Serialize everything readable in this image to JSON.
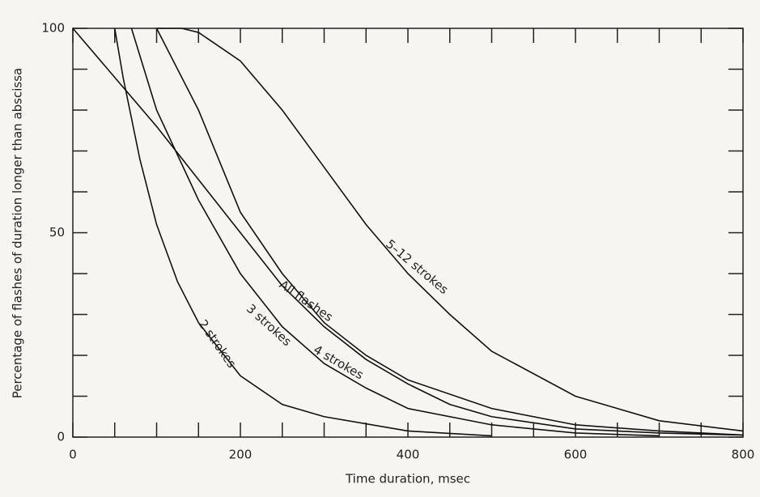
{
  "chart_data": {
    "type": "line",
    "x_label": "Time duration, msec",
    "y_label": "Percentage of flashes of duration longer than abscissa",
    "xlim": [
      0,
      800
    ],
    "ylim": [
      0,
      100
    ],
    "xticks": [
      0,
      200,
      400,
      600,
      800
    ],
    "yticks": [
      0,
      50,
      100
    ],
    "x_minor_ticks": [
      50,
      100,
      150,
      250,
      300,
      350,
      450,
      500,
      550,
      650,
      700,
      750
    ],
    "y_minor_ticks": [
      10,
      20,
      30,
      40,
      60,
      70,
      80,
      90
    ],
    "color": "#111111",
    "series": [
      {
        "name": "All flashes",
        "x": [
          0,
          50,
          100,
          150,
          200,
          250,
          300,
          350,
          400,
          450,
          500,
          600,
          700,
          800
        ],
        "values": [
          100,
          88,
          76,
          63,
          50,
          37,
          27,
          19,
          13,
          8,
          5,
          2,
          1,
          0.5
        ]
      },
      {
        "name": "2 strokes",
        "x": [
          50,
          60,
          80,
          100,
          125,
          150,
          200,
          250,
          300,
          400,
          500
        ],
        "values": [
          100,
          88,
          68,
          52,
          38,
          28,
          15,
          8,
          5,
          1.5,
          0.3
        ]
      },
      {
        "name": "3 strokes",
        "x": [
          70,
          100,
          150,
          200,
          250,
          300,
          350,
          400,
          500,
          600,
          700
        ],
        "values": [
          100,
          80,
          58,
          40,
          27,
          18,
          12,
          7,
          3,
          1,
          0.3
        ]
      },
      {
        "name": "4 strokes",
        "x": [
          100,
          150,
          200,
          250,
          300,
          350,
          400,
          500,
          600,
          700,
          800
        ],
        "values": [
          100,
          80,
          55,
          40,
          28,
          20,
          14,
          7,
          3,
          1.5,
          0.5
        ]
      },
      {
        "name": "5–12 strokes",
        "x": [
          100,
          130,
          150,
          200,
          250,
          300,
          350,
          400,
          450,
          500,
          600,
          700,
          800
        ],
        "values": [
          100,
          100,
          99,
          92,
          80,
          66,
          52,
          40,
          30,
          21,
          10,
          4,
          1.5
        ]
      }
    ]
  }
}
